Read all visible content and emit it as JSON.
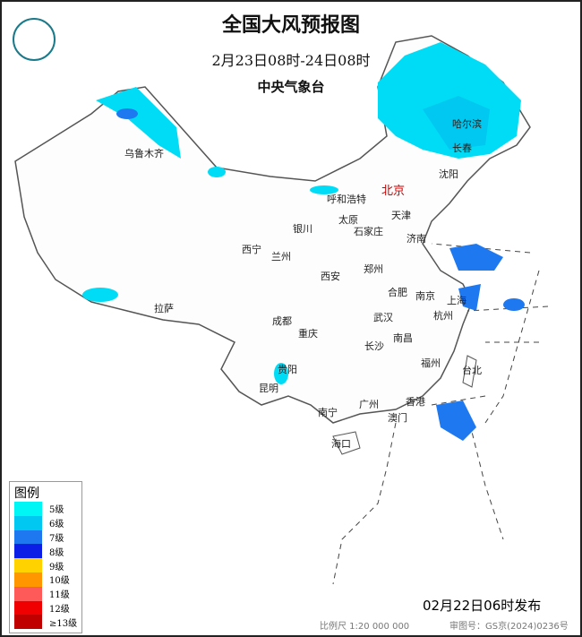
{
  "title": "全国大风预报图",
  "period": "2月23日08时-24日08时",
  "issuer": "中央气象台",
  "issued": "02月22日06时发布",
  "scale": "比例尺 1:20 000 000",
  "review_no": "审图号：GS京(2024)0236号",
  "legend": {
    "title": "图例",
    "items": [
      {
        "label": "5级",
        "color": "#00f5f5"
      },
      {
        "label": "6级",
        "color": "#00c8f0"
      },
      {
        "label": "7级",
        "color": "#1e78f0"
      },
      {
        "label": "8级",
        "color": "#0a1ee6"
      },
      {
        "label": "9级",
        "color": "#ffd200"
      },
      {
        "label": "10级",
        "color": "#ff9600"
      },
      {
        "label": "11级",
        "color": "#ff5a5a"
      },
      {
        "label": "12级",
        "color": "#f00000"
      },
      {
        "label": "≥13级",
        "color": "#c00000"
      }
    ]
  },
  "cities": [
    {
      "name": "北京",
      "capital": true
    },
    {
      "name": "哈尔滨"
    },
    {
      "name": "长春"
    },
    {
      "name": "沈阳"
    },
    {
      "name": "乌鲁木齐"
    },
    {
      "name": "呼和浩特"
    },
    {
      "name": "天津"
    },
    {
      "name": "银川"
    },
    {
      "name": "太原"
    },
    {
      "name": "石家庄"
    },
    {
      "name": "济南"
    },
    {
      "name": "西宁"
    },
    {
      "name": "兰州"
    },
    {
      "name": "郑州"
    },
    {
      "name": "西安"
    },
    {
      "name": "合肥"
    },
    {
      "name": "南京"
    },
    {
      "name": "上海"
    },
    {
      "name": "拉萨"
    },
    {
      "name": "成都"
    },
    {
      "name": "武汉"
    },
    {
      "name": "杭州"
    },
    {
      "name": "重庆"
    },
    {
      "name": "南昌"
    },
    {
      "name": "长沙"
    },
    {
      "name": "贵阳"
    },
    {
      "name": "福州"
    },
    {
      "name": "台北"
    },
    {
      "name": "昆明"
    },
    {
      "name": "广州"
    },
    {
      "name": "香港"
    },
    {
      "name": "南宁"
    },
    {
      "name": "澳门"
    },
    {
      "name": "海口"
    }
  ]
}
